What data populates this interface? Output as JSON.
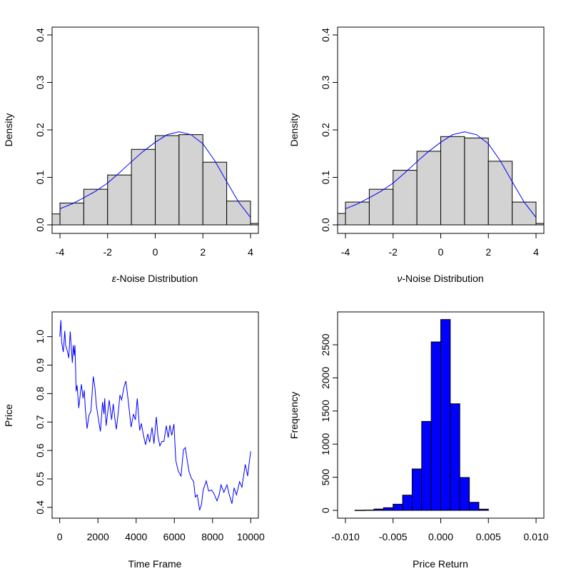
{
  "chart_data": [
    {
      "type": "bar",
      "subtype": "histogram-with-density",
      "xlabel_symbol": "ε",
      "xlabel_text": "-Noise Distribution",
      "ylabel": "Density",
      "xlim": [
        -4.33,
        4.33
      ],
      "ylim": [
        -0.018,
        0.4165
      ],
      "xticks": [
        -4,
        -2,
        0,
        2,
        4
      ],
      "xtick_labels": [
        "-4",
        "-2",
        "0",
        "2",
        "4"
      ],
      "yticks": [
        0,
        0.1,
        0.2,
        0.3,
        0.4
      ],
      "ytick_labels": [
        "0.0",
        "0.1",
        "0.2",
        "0.3",
        "0.4"
      ],
      "bin_edges": [
        -5,
        -4,
        -3,
        -2,
        -1,
        0,
        1,
        2,
        3,
        4,
        5
      ],
      "values": [
        0.023,
        0.046,
        0.075,
        0.105,
        0.159,
        0.188,
        0.19,
        0.132,
        0.05,
        0.003
      ],
      "bar_color": "#d3d3d3",
      "density_curve": {
        "color": "#0000ff",
        "x": [
          -4,
          -3.5,
          -3,
          -2.5,
          -2,
          -1.5,
          -1,
          -0.5,
          0,
          0.5,
          1,
          1.5,
          2,
          2.5,
          3,
          3.5,
          4
        ],
        "y": [
          0.034,
          0.044,
          0.057,
          0.071,
          0.088,
          0.11,
          0.133,
          0.155,
          0.174,
          0.19,
          0.196,
          0.19,
          0.171,
          0.135,
          0.091,
          0.048,
          0.0155
        ]
      }
    },
    {
      "type": "bar",
      "subtype": "histogram-with-density",
      "xlabel_symbol": "ν",
      "xlabel_text": "-Noise Distribution",
      "ylabel": "Density",
      "xlim": [
        -4.33,
        4.33
      ],
      "ylim": [
        -0.018,
        0.4165
      ],
      "xticks": [
        -4,
        -2,
        0,
        2,
        4
      ],
      "xtick_labels": [
        "-4",
        "-2",
        "0",
        "2",
        "4"
      ],
      "yticks": [
        0,
        0.1,
        0.2,
        0.3,
        0.4
      ],
      "ytick_labels": [
        "0.0",
        "0.1",
        "0.2",
        "0.3",
        "0.4"
      ],
      "bin_edges": [
        -5,
        -4,
        -3,
        -2,
        -1,
        0,
        1,
        2,
        3,
        4,
        5
      ],
      "values": [
        0.024,
        0.048,
        0.075,
        0.115,
        0.155,
        0.186,
        0.183,
        0.134,
        0.048,
        0.003
      ],
      "bar_color": "#d3d3d3",
      "density_curve": {
        "color": "#0000ff",
        "x": [
          -4,
          -3.5,
          -3,
          -2.5,
          -2,
          -1.5,
          -1,
          -0.5,
          0,
          0.5,
          1,
          1.5,
          2,
          2.5,
          3,
          3.5,
          4
        ],
        "y": [
          0.034,
          0.044,
          0.057,
          0.071,
          0.088,
          0.11,
          0.133,
          0.155,
          0.174,
          0.19,
          0.196,
          0.19,
          0.171,
          0.135,
          0.091,
          0.048,
          0.0155
        ]
      }
    },
    {
      "type": "line",
      "xlabel": "Time Frame",
      "ylabel": "Price",
      "xlim": [
        -400,
        10400
      ],
      "ylim": [
        0.362,
        1.087
      ],
      "xticks": [
        0,
        2000,
        4000,
        6000,
        8000,
        10000
      ],
      "xtick_labels": [
        "0",
        "2000",
        "4000",
        "6000",
        "8000",
        "10000"
      ],
      "yticks": [
        0.4,
        0.5,
        0.6,
        0.7,
        0.8,
        0.9,
        1.0
      ],
      "ytick_labels": [
        "0.4",
        "0.5",
        "0.6",
        "0.7",
        "0.8",
        "0.9",
        "1.0"
      ],
      "line_color": "#0000ff",
      "x": [
        0,
        62,
        100,
        187,
        262,
        311,
        411,
        473,
        548,
        660,
        710,
        760,
        797,
        859,
        909,
        996,
        1133,
        1220,
        1283,
        1345,
        1432,
        1532,
        1631,
        1756,
        1843,
        1918,
        2030,
        2130,
        2242,
        2316,
        2354,
        2428,
        2590,
        2715,
        2802,
        2877,
        2964,
        3064,
        3151,
        3238,
        3362,
        3462,
        3587,
        3736,
        3861,
        3961,
        4060,
        4185,
        4271,
        4396,
        4496,
        4608,
        4707,
        4832,
        4932,
        5056,
        5143,
        5243,
        5355,
        5455,
        5579,
        5679,
        5766,
        5866,
        5978,
        6077,
        6202,
        6351,
        6476,
        6575,
        6663,
        6762,
        6887,
        7012,
        7098,
        7198,
        7323,
        7422,
        7509,
        7671,
        7796,
        7945,
        8070,
        8232,
        8344,
        8443,
        8593,
        8755,
        8879,
        9016,
        9128,
        9253,
        9415,
        9539,
        9714,
        9838,
        9913,
        10000
      ],
      "y": [
        1.0,
        1.058,
        0.98,
        0.946,
        1.02,
        0.97,
        0.946,
        0.925,
        1.018,
        0.908,
        0.97,
        0.933,
        0.97,
        0.808,
        0.829,
        0.749,
        0.833,
        0.783,
        0.812,
        0.741,
        0.677,
        0.724,
        0.737,
        0.86,
        0.82,
        0.758,
        0.708,
        0.667,
        0.77,
        0.728,
        0.783,
        0.687,
        0.777,
        0.708,
        0.764,
        0.716,
        0.674,
        0.734,
        0.795,
        0.778,
        0.822,
        0.844,
        0.774,
        0.682,
        0.728,
        0.708,
        0.783,
        0.67,
        0.695,
        0.649,
        0.62,
        0.658,
        0.629,
        0.681,
        0.624,
        0.718,
        0.649,
        0.616,
        0.632,
        0.632,
        0.687,
        0.645,
        0.689,
        0.653,
        0.693,
        0.565,
        0.528,
        0.51,
        0.603,
        0.61,
        0.57,
        0.528,
        0.503,
        0.49,
        0.436,
        0.444,
        0.39,
        0.411,
        0.461,
        0.493,
        0.457,
        0.461,
        0.449,
        0.423,
        0.444,
        0.479,
        0.453,
        0.479,
        0.444,
        0.413,
        0.469,
        0.444,
        0.49,
        0.471,
        0.551,
        0.51,
        0.553,
        0.597
      ]
    },
    {
      "type": "bar",
      "subtype": "histogram",
      "xlabel": "Price Return",
      "ylabel": "Frequency",
      "xlim": [
        -0.01082,
        0.01082
      ],
      "ylim": [
        -118,
        2996
      ],
      "xticks": [
        -0.01,
        -0.005,
        0,
        0.005,
        0.01
      ],
      "xtick_labels": [
        "-0.010",
        "-0.005",
        "0.000",
        "0.005",
        "0.010"
      ],
      "yticks": [
        0,
        500,
        1000,
        1500,
        2000,
        2500
      ],
      "ytick_labels": [
        "0",
        "500",
        "1000",
        "1500",
        "2000",
        "2500"
      ],
      "bin_edges": [
        -0.009,
        -0.008,
        -0.007,
        -0.006,
        -0.005,
        -0.004,
        -0.003,
        -0.002,
        -0.001,
        0,
        0.001,
        0.002,
        0.003,
        0.004,
        0.005
      ],
      "values": [
        2,
        5,
        20,
        40,
        93,
        230,
        625,
        1343,
        2543,
        2881,
        1609,
        496,
        122,
        18
      ],
      "bar_color": "#0000ff"
    }
  ]
}
